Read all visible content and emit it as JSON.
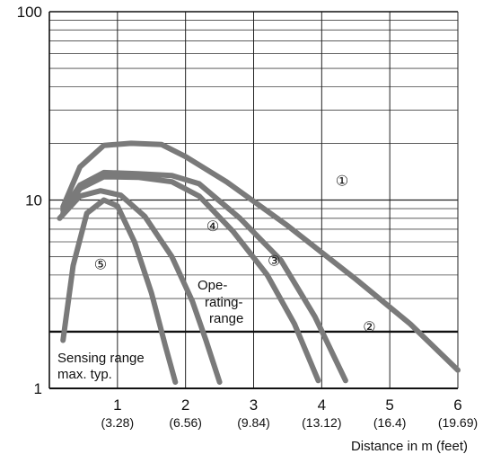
{
  "chart_data": {
    "type": "line",
    "xlabel": "Distance in m (feet)",
    "ylabel": "",
    "x_scale": "linear",
    "y_scale": "log",
    "xlim": [
      0,
      6
    ],
    "ylim": [
      1,
      100
    ],
    "x_ticks": [
      {
        "value": 1,
        "label": "1",
        "sublabel": "(3.28)"
      },
      {
        "value": 2,
        "label": "2",
        "sublabel": "(6.56)"
      },
      {
        "value": 3,
        "label": "3",
        "sublabel": "(9.84)"
      },
      {
        "value": 4,
        "label": "4",
        "sublabel": "(13.12)"
      },
      {
        "value": 5,
        "label": "5",
        "sublabel": "(16.4)"
      },
      {
        "value": 6,
        "label": "6",
        "sublabel": "(19.69)"
      }
    ],
    "y_ticks": [
      {
        "value": 1,
        "label": "1"
      },
      {
        "value": 10,
        "label": "10"
      },
      {
        "value": 100,
        "label": "100"
      }
    ],
    "grid": true,
    "threshold": {
      "y": 2
    },
    "annotations": {
      "operating_range": [
        "Ope-",
        "rating-",
        "range"
      ],
      "sensing_range": [
        "Sensing range",
        "max. typ."
      ]
    },
    "series": [
      {
        "marker": "①",
        "points": [
          [
            0.2,
            9.2
          ],
          [
            0.45,
            15
          ],
          [
            0.8,
            19.5
          ],
          [
            1.2,
            20
          ],
          [
            1.65,
            19.7
          ],
          [
            2.0,
            17
          ],
          [
            2.6,
            12.5
          ],
          [
            3.5,
            7.3
          ],
          [
            4.5,
            3.8
          ],
          [
            5.3,
            2.2
          ],
          [
            6.0,
            1.25
          ]
        ]
      },
      {
        "marker": "②",
        "points": [
          [
            0.2,
            8.8
          ],
          [
            0.45,
            12
          ],
          [
            0.8,
            14
          ],
          [
            1.3,
            13.8
          ],
          [
            1.8,
            13.5
          ],
          [
            2.2,
            12.2
          ],
          [
            2.8,
            8
          ],
          [
            3.4,
            4.8
          ],
          [
            3.9,
            2.4
          ],
          [
            4.35,
            1.1
          ]
        ]
      },
      {
        "marker": "③",
        "points": [
          [
            0.2,
            8.5
          ],
          [
            0.45,
            11.5
          ],
          [
            0.8,
            13.3
          ],
          [
            1.3,
            13.2
          ],
          [
            1.8,
            12.5
          ],
          [
            2.2,
            10.5
          ],
          [
            2.7,
            6.8
          ],
          [
            3.2,
            4.0
          ],
          [
            3.6,
            2.2
          ],
          [
            3.95,
            1.1
          ]
        ]
      },
      {
        "marker": "④",
        "points": [
          [
            0.15,
            8.0
          ],
          [
            0.45,
            10.5
          ],
          [
            0.75,
            11.2
          ],
          [
            1.05,
            10.6
          ],
          [
            1.4,
            8.2
          ],
          [
            1.8,
            5.0
          ],
          [
            2.1,
            2.9
          ],
          [
            2.3,
            1.8
          ],
          [
            2.5,
            1.08
          ]
        ]
      },
      {
        "marker": "⑤",
        "points": [
          [
            0.2,
            1.8
          ],
          [
            0.35,
            4.5
          ],
          [
            0.55,
            8.5
          ],
          [
            0.8,
            10
          ],
          [
            1.0,
            9.3
          ],
          [
            1.25,
            6.0
          ],
          [
            1.5,
            3.2
          ],
          [
            1.7,
            1.7
          ],
          [
            1.85,
            1.08
          ]
        ]
      }
    ]
  }
}
